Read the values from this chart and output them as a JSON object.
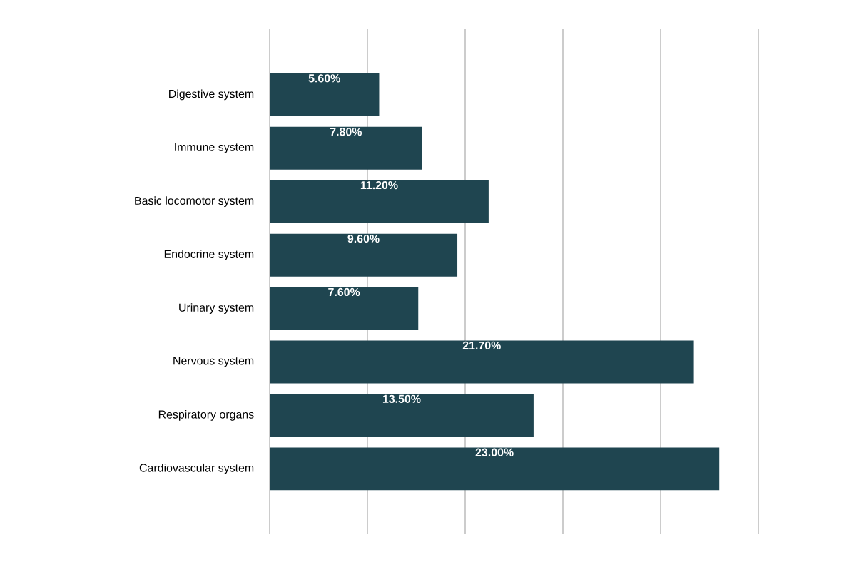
{
  "chart_data": {
    "type": "bar",
    "orientation": "horizontal",
    "categories": [
      "Digestive system",
      "Immune system",
      "Basic locomotor system",
      "Endocrine system",
      "Urinary system",
      "Nervous system",
      "Respiratory organs",
      "Cardiovascular system"
    ],
    "values": [
      5.6,
      7.8,
      11.2,
      9.6,
      7.6,
      21.7,
      13.5,
      23.0
    ],
    "value_labels": [
      "5.60%",
      "7.80%",
      "11.20%",
      "9.60%",
      "7.60%",
      "21.70%",
      "13.50%",
      "23.00%"
    ],
    "color": "#1f4550",
    "xlim": [
      0,
      25
    ],
    "xticks": [
      {
        "value": 0,
        "label": null
      },
      {
        "value": 5,
        "label": null
      },
      {
        "value": 10,
        "label": null
      },
      {
        "value": 15,
        "label": null
      },
      {
        "value": 20,
        "label": null
      },
      {
        "value": 25,
        "label": null
      }
    ],
    "grid": "x",
    "tick_labels": "y"
  }
}
